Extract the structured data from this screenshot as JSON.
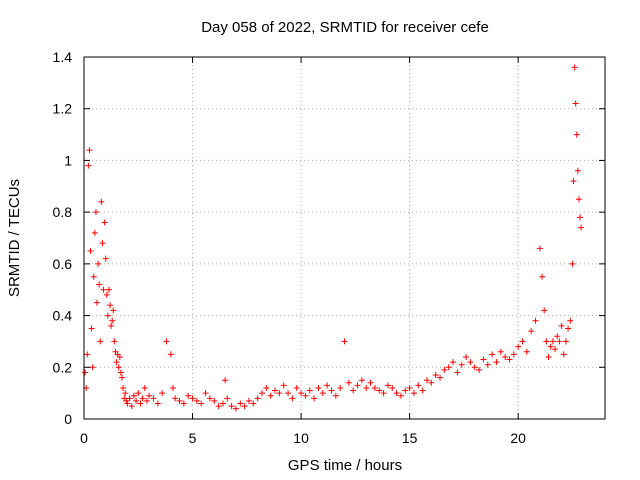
{
  "chart_data": {
    "type": "scatter",
    "title": "Day 058 of 2022, SRMTID for receiver cefe",
    "xlabel": "GPS time / hours",
    "ylabel": "SRMTID / TECUs",
    "xlim": [
      0,
      24
    ],
    "ylim": [
      0,
      1.4
    ],
    "x_ticks": [
      0,
      5,
      10,
      15,
      20
    ],
    "x_tick_labels": [
      "0",
      "5",
      "10",
      "15",
      "20"
    ],
    "y_ticks": [
      0,
      0.2,
      0.4,
      0.6,
      0.8,
      1.0,
      1.2,
      1.4
    ],
    "y_tick_labels": [
      "0",
      "0.2",
      "0.4",
      "0.6",
      "0.8",
      "1",
      "1.2",
      "1.4"
    ],
    "grid": true,
    "marker": "+",
    "color": "#ff0000",
    "series": [
      {
        "name": "SRMTID",
        "x": [
          0.05,
          0.1,
          0.15,
          0.2,
          0.25,
          0.3,
          0.35,
          0.4,
          0.45,
          0.5,
          0.55,
          0.6,
          0.65,
          0.7,
          0.75,
          0.8,
          0.85,
          0.9,
          0.95,
          1.0,
          1.05,
          1.1,
          1.15,
          1.2,
          1.25,
          1.3,
          1.35,
          1.4,
          1.45,
          1.5,
          1.55,
          1.6,
          1.65,
          1.7,
          1.75,
          1.8,
          1.85,
          1.9,
          1.95,
          2.0,
          2.1,
          2.2,
          2.3,
          2.4,
          2.5,
          2.6,
          2.7,
          2.8,
          2.9,
          3.0,
          3.2,
          3.4,
          3.6,
          3.8,
          4.0,
          4.1,
          4.2,
          4.4,
          4.6,
          4.8,
          5.0,
          5.2,
          5.4,
          5.6,
          5.8,
          6.0,
          6.2,
          6.4,
          6.5,
          6.6,
          6.8,
          7.0,
          7.2,
          7.4,
          7.6,
          7.8,
          8.0,
          8.2,
          8.4,
          8.6,
          8.8,
          9.0,
          9.2,
          9.4,
          9.6,
          9.8,
          10.0,
          10.2,
          10.4,
          10.6,
          10.8,
          11.0,
          11.2,
          11.4,
          11.6,
          11.8,
          12.0,
          12.2,
          12.4,
          12.6,
          12.8,
          13.0,
          13.2,
          13.4,
          13.6,
          13.8,
          14.0,
          14.2,
          14.4,
          14.6,
          14.8,
          15.0,
          15.2,
          15.4,
          15.6,
          15.8,
          16.0,
          16.2,
          16.4,
          16.6,
          16.8,
          17.0,
          17.2,
          17.4,
          17.6,
          17.8,
          18.0,
          18.2,
          18.4,
          18.6,
          18.8,
          19.0,
          19.2,
          19.4,
          19.6,
          19.8,
          20.0,
          20.2,
          20.4,
          20.6,
          20.8,
          21.0,
          21.1,
          21.2,
          21.3,
          21.4,
          21.5,
          21.6,
          21.7,
          21.8,
          21.9,
          22.0,
          22.1,
          22.2,
          22.3,
          22.4,
          22.5,
          22.55,
          22.6,
          22.65,
          22.7,
          22.75,
          22.8,
          22.85,
          22.9
        ],
        "y": [
          0.18,
          0.12,
          0.25,
          0.98,
          1.04,
          0.65,
          0.35,
          0.2,
          0.55,
          0.72,
          0.8,
          0.45,
          0.6,
          0.52,
          0.3,
          0.84,
          0.68,
          0.5,
          0.76,
          0.62,
          0.48,
          0.4,
          0.5,
          0.44,
          0.36,
          0.38,
          0.42,
          0.3,
          0.26,
          0.22,
          0.25,
          0.2,
          0.24,
          0.18,
          0.16,
          0.12,
          0.08,
          0.1,
          0.07,
          0.06,
          0.08,
          0.05,
          0.09,
          0.07,
          0.1,
          0.06,
          0.08,
          0.12,
          0.07,
          0.09,
          0.08,
          0.06,
          0.1,
          0.3,
          0.25,
          0.12,
          0.08,
          0.07,
          0.06,
          0.09,
          0.08,
          0.07,
          0.06,
          0.1,
          0.08,
          0.07,
          0.05,
          0.06,
          0.15,
          0.08,
          0.05,
          0.04,
          0.06,
          0.05,
          0.07,
          0.06,
          0.08,
          0.1,
          0.12,
          0.09,
          0.11,
          0.1,
          0.13,
          0.1,
          0.08,
          0.12,
          0.1,
          0.09,
          0.11,
          0.08,
          0.12,
          0.1,
          0.13,
          0.11,
          0.09,
          0.12,
          0.3,
          0.14,
          0.11,
          0.13,
          0.15,
          0.12,
          0.14,
          0.12,
          0.11,
          0.1,
          0.13,
          0.12,
          0.1,
          0.09,
          0.11,
          0.12,
          0.1,
          0.13,
          0.11,
          0.15,
          0.14,
          0.17,
          0.16,
          0.19,
          0.2,
          0.22,
          0.18,
          0.21,
          0.24,
          0.22,
          0.2,
          0.19,
          0.23,
          0.21,
          0.25,
          0.22,
          0.26,
          0.24,
          0.23,
          0.25,
          0.28,
          0.3,
          0.26,
          0.34,
          0.38,
          0.66,
          0.55,
          0.42,
          0.3,
          0.24,
          0.28,
          0.3,
          0.27,
          0.32,
          0.3,
          0.36,
          0.25,
          0.3,
          0.35,
          0.38,
          0.6,
          0.92,
          1.36,
          1.22,
          1.1,
          0.96,
          0.85,
          0.78,
          0.74
        ]
      }
    ]
  }
}
